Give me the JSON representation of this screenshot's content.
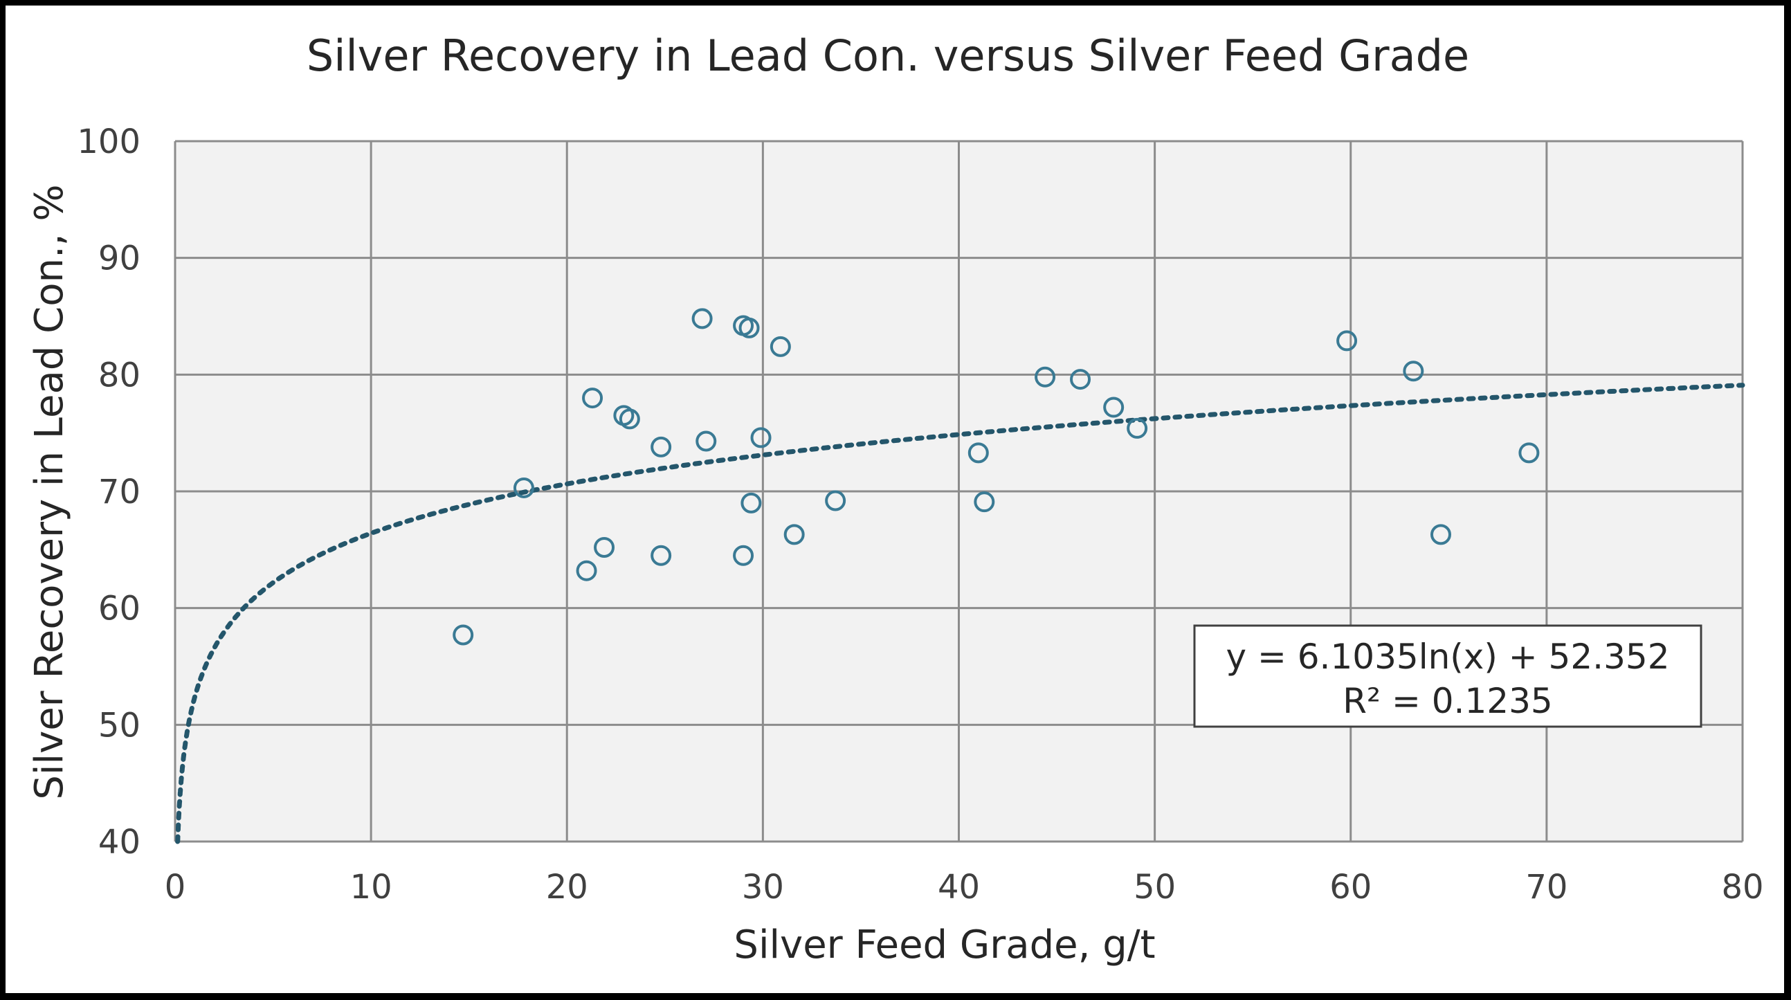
{
  "chart_data": {
    "type": "scatter",
    "title": "Silver Recovery in Lead Con. versus Silver Feed Grade",
    "xlabel": "Silver Feed Grade, g/t",
    "ylabel": "Silver Recovery in Lead Con., %",
    "xlim": [
      0,
      80
    ],
    "ylim": [
      40,
      100
    ],
    "xticks": [
      "0",
      "10",
      "20",
      "30",
      "40",
      "50",
      "60",
      "70",
      "80"
    ],
    "yticks": [
      "40",
      "50",
      "60",
      "70",
      "80",
      "90",
      "100"
    ],
    "grid": true,
    "legend": "none",
    "colors": {
      "marker": "#3a7a94",
      "trendline": "#24566b",
      "plot_background": "#f2f2f2",
      "gridline": "#8c8c8c"
    },
    "series": [
      {
        "points": [
          {
            "x": 14.7,
            "y": 57.7
          },
          {
            "x": 17.8,
            "y": 70.3
          },
          {
            "x": 21.0,
            "y": 63.2
          },
          {
            "x": 21.3,
            "y": 78.0
          },
          {
            "x": 21.9,
            "y": 65.2
          },
          {
            "x": 22.9,
            "y": 76.5
          },
          {
            "x": 23.2,
            "y": 76.2
          },
          {
            "x": 24.8,
            "y": 73.8
          },
          {
            "x": 24.8,
            "y": 64.5
          },
          {
            "x": 26.9,
            "y": 84.8
          },
          {
            "x": 27.1,
            "y": 74.3
          },
          {
            "x": 29.0,
            "y": 84.2
          },
          {
            "x": 29.3,
            "y": 84.0
          },
          {
            "x": 29.0,
            "y": 64.5
          },
          {
            "x": 29.4,
            "y": 69.0
          },
          {
            "x": 29.9,
            "y": 74.6
          },
          {
            "x": 30.9,
            "y": 82.4
          },
          {
            "x": 31.6,
            "y": 66.3
          },
          {
            "x": 33.7,
            "y": 69.2
          },
          {
            "x": 41.0,
            "y": 73.3
          },
          {
            "x": 41.3,
            "y": 69.1
          },
          {
            "x": 44.4,
            "y": 79.8
          },
          {
            "x": 46.2,
            "y": 79.6
          },
          {
            "x": 47.9,
            "y": 77.2
          },
          {
            "x": 49.1,
            "y": 75.4
          },
          {
            "x": 59.8,
            "y": 82.9
          },
          {
            "x": 63.2,
            "y": 80.3
          },
          {
            "x": 64.6,
            "y": 66.3
          },
          {
            "x": 69.1,
            "y": 73.3
          }
        ]
      }
    ],
    "trendline": {
      "type": "logarithmic",
      "a": 6.1035,
      "b": 52.352,
      "equation": "y = 6.1035ln(x) + 52.352",
      "r2": "R² = 0.1235"
    }
  }
}
